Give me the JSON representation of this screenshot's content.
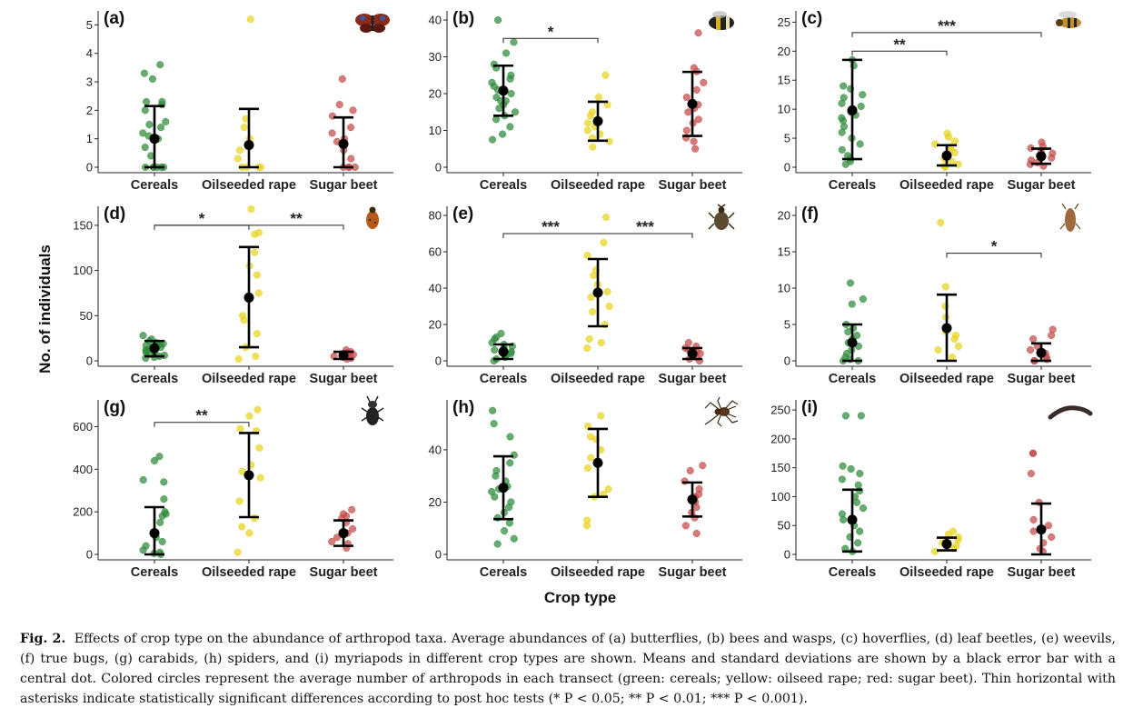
{
  "figure": {
    "y_label": "No. of individuals",
    "x_label": "Crop type"
  },
  "caption": {
    "label": "Fig. 2.",
    "text": "Effects of crop type on the abundance of arthropod taxa. Average abundances of (a) butterflies, (b) bees and wasps, (c) hoverflies, (d) leaf beetles, (e) weevils, (f) true bugs, (g) carabids, (h) spiders, and (i) myriapods in different crop types are shown. Means and standard deviations are shown by a black error bar with a central dot. Colored circles represent the average number of arthropods in each transect (green: cereals; yellow: oilseed rape; red: sugar beet). Thin horizontal with asterisks indicate statistically significant differences according to post hoc tests (* P < 0.05; ** P < 0.01; *** P < 0.001)."
  },
  "colors": {
    "cereals": "#2e8b3a",
    "oilseed_rape": "#e8d21e",
    "sugar_beet": "#c44a4a",
    "mean": "#000000"
  },
  "chart_data": [
    {
      "type": "scatter",
      "panel": "(a)",
      "icon": "butterfly-icon",
      "categories": [
        "Cereals",
        "Oilseeded rape",
        "Sugar beet"
      ],
      "ylim": [
        0,
        5.3
      ],
      "yticks": [
        0,
        1,
        2,
        3,
        4,
        5
      ],
      "summary": [
        {
          "mean": 1.0,
          "low": 0.0,
          "high": 2.15
        },
        {
          "mean": 0.78,
          "low": 0.0,
          "high": 2.05
        },
        {
          "mean": 0.82,
          "low": 0.0,
          "high": 1.75
        }
      ],
      "points": [
        [
          3.6,
          3.3,
          3.1,
          2.3,
          2.3,
          2.2,
          2.0,
          1.6,
          1.5,
          1.4,
          1.2,
          1.1,
          1.0,
          1.0,
          0.7,
          0.4,
          0.0,
          0.0,
          0.0,
          0.0,
          0.0,
          0.0
        ],
        [
          5.2,
          1.7,
          1.4,
          1.0,
          0.6,
          0.3,
          0.0,
          0.0,
          0.0,
          0.0
        ],
        [
          3.1,
          2.2,
          2.0,
          1.8,
          1.4,
          1.2,
          1.0,
          0.9,
          0.6,
          0.3,
          0.0,
          0.0,
          0.0,
          0.0
        ]
      ],
      "significance": []
    },
    {
      "type": "scatter",
      "panel": "(b)",
      "icon": "bumblebee-icon",
      "categories": [
        "Cereals",
        "Oilseeded rape",
        "Sugar beet"
      ],
      "ylim": [
        0,
        41
      ],
      "yticks": [
        0,
        10,
        20,
        30,
        40
      ],
      "summary": [
        {
          "mean": 20.8,
          "low": 14.0,
          "high": 27.6
        },
        {
          "mean": 12.5,
          "low": 7.2,
          "high": 17.8
        },
        {
          "mean": 17.2,
          "low": 8.5,
          "high": 25.9
        }
      ],
      "points": [
        [
          40,
          34,
          31,
          28,
          27,
          25,
          24,
          23,
          22,
          21,
          20,
          19,
          18,
          18,
          17,
          16,
          15,
          14,
          13,
          11,
          9,
          7.5
        ],
        [
          25,
          19,
          17,
          15,
          14,
          12,
          11,
          10,
          9,
          8,
          7,
          5.5
        ],
        [
          36.5,
          27,
          26,
          23,
          21,
          19,
          17,
          16,
          15,
          13,
          12,
          10,
          8,
          7,
          5
        ]
      ],
      "significance": [
        {
          "from": 0,
          "to": 1,
          "label": "*",
          "y": 35
        }
      ]
    },
    {
      "type": "scatter",
      "panel": "(c)",
      "icon": "hoverfly-icon",
      "categories": [
        "Cereals",
        "Oilseeded rape",
        "Sugar beet"
      ],
      "ylim": [
        0,
        26
      ],
      "yticks": [
        0,
        5,
        10,
        15,
        20,
        25
      ],
      "summary": [
        {
          "mean": 9.8,
          "low": 1.4,
          "high": 18.5
        },
        {
          "mean": 2.0,
          "low": 0.3,
          "high": 3.8
        },
        {
          "mean": 1.9,
          "low": 0.6,
          "high": 3.2
        }
      ],
      "points": [
        [
          18.5,
          17.5,
          14,
          13.5,
          12.5,
          12,
          11,
          10.5,
          10,
          9.5,
          9,
          8.5,
          8,
          7,
          6,
          5,
          4,
          3,
          2,
          1.5,
          1,
          0.5
        ],
        [
          5.8,
          5.2,
          4.5,
          4.0,
          3.5,
          3.0,
          2.5,
          2.0,
          1.5,
          1.0,
          0.5,
          0.2,
          0.0
        ],
        [
          4.3,
          3.6,
          3.3,
          2.8,
          2.4,
          2.0,
          1.6,
          1.2,
          0.8,
          0.5,
          0.2
        ]
      ],
      "significance": [
        {
          "from": 0,
          "to": 1,
          "label": "**",
          "y": 20
        },
        {
          "from": 0,
          "to": 2,
          "label": "***",
          "y": 23.2
        }
      ]
    },
    {
      "type": "scatter",
      "panel": "(d)",
      "icon": "leaf-beetle-icon",
      "categories": [
        "Cereals",
        "Oilseeded rape",
        "Sugar beet"
      ],
      "ylim": [
        0,
        165
      ],
      "yticks": [
        0,
        50,
        100,
        150
      ],
      "summary": [
        {
          "mean": 14,
          "low": 5,
          "high": 22
        },
        {
          "mean": 70,
          "low": 15,
          "high": 126
        },
        {
          "mean": 6,
          "low": 2,
          "high": 10
        }
      ],
      "points": [
        [
          28,
          24,
          22,
          20,
          19,
          18,
          17,
          16,
          15,
          14,
          13,
          12,
          11,
          10,
          9,
          8,
          6,
          5,
          4,
          3
        ],
        [
          168,
          142,
          140,
          120,
          105,
          95,
          75,
          50,
          45,
          30,
          15,
          5,
          2
        ],
        [
          12,
          10,
          9,
          8,
          7,
          6,
          5,
          4,
          3,
          2
        ]
      ],
      "significance": [
        {
          "from": 0,
          "to": 1,
          "label": "*",
          "y": 150,
          "label_at": 0.5
        },
        {
          "from": 1,
          "to": 2,
          "label": "**",
          "y": 150,
          "draw_line": false
        }
      ],
      "significance_line": {
        "from": 0,
        "to": 2,
        "y": 150
      }
    },
    {
      "type": "scatter",
      "panel": "(e)",
      "icon": "weevil-icon",
      "categories": [
        "Cereals",
        "Oilseeded rape",
        "Sugar beet"
      ],
      "ylim": [
        0,
        82
      ],
      "yticks": [
        0,
        20,
        40,
        60,
        80
      ],
      "summary": [
        {
          "mean": 5,
          "low": 1,
          "high": 9
        },
        {
          "mean": 37.5,
          "low": 19,
          "high": 56
        },
        {
          "mean": 4,
          "low": 1,
          "high": 7
        }
      ],
      "points": [
        [
          15,
          13,
          12,
          10,
          9,
          8,
          7,
          6,
          5,
          4,
          3,
          2,
          1,
          0
        ],
        [
          79,
          65,
          58,
          50,
          47,
          42,
          38,
          35,
          30,
          27,
          20,
          12,
          10,
          7
        ],
        [
          10,
          8,
          7,
          6,
          5,
          4,
          3,
          2,
          1,
          0
        ]
      ],
      "significance_line": {
        "from": 0,
        "to": 2,
        "y": 70
      },
      "significance": [
        {
          "from": 0,
          "to": 1,
          "label": "***",
          "y": 70,
          "draw_line": false
        },
        {
          "from": 1,
          "to": 2,
          "label": "***",
          "y": 70,
          "draw_line": false
        }
      ]
    },
    {
      "type": "scatter",
      "panel": "(f)",
      "icon": "true-bug-icon",
      "categories": [
        "Cereals",
        "Oilseeded rape",
        "Sugar beet"
      ],
      "ylim": [
        0,
        20.5
      ],
      "yticks": [
        0,
        5,
        10,
        15,
        20
      ],
      "summary": [
        {
          "mean": 2.5,
          "low": 0,
          "high": 5
        },
        {
          "mean": 4.5,
          "low": 0,
          "high": 9.1
        },
        {
          "mean": 1.1,
          "low": 0,
          "high": 2.4
        }
      ],
      "points": [
        [
          10.7,
          8.5,
          7.8,
          5,
          4.5,
          4,
          3.5,
          3,
          2.5,
          2,
          1.5,
          1,
          0.5,
          0.2,
          0,
          0
        ],
        [
          19,
          10.2,
          7.5,
          6,
          4,
          3.5,
          3,
          2,
          1.5,
          0.5
        ],
        [
          4.3,
          3.5,
          3,
          2,
          1.5,
          1,
          0.5,
          0.2,
          0,
          0
        ]
      ],
      "significance": [
        {
          "from": 1,
          "to": 2,
          "label": "*",
          "y": 14.8
        }
      ]
    },
    {
      "type": "scatter",
      "panel": "(g)",
      "icon": "carabid-beetle-icon",
      "categories": [
        "Cereals",
        "Oilseeded rape",
        "Sugar beet"
      ],
      "ylim": [
        0,
        700
      ],
      "yticks": [
        0,
        200,
        400,
        600
      ],
      "summary": [
        {
          "mean": 100,
          "low": 0,
          "high": 222
        },
        {
          "mean": 372,
          "low": 175,
          "high": 570
        },
        {
          "mean": 100,
          "low": 40,
          "high": 160
        }
      ],
      "points": [
        [
          460,
          440,
          350,
          340,
          260,
          200,
          190,
          180,
          150,
          100,
          80,
          60,
          40,
          20,
          10,
          5,
          0
        ],
        [
          680,
          650,
          590,
          580,
          500,
          420,
          390,
          360,
          250,
          170,
          130,
          100,
          10
        ],
        [
          210,
          190,
          180,
          170,
          150,
          120,
          100,
          80,
          60,
          50,
          30
        ]
      ],
      "significance": [
        {
          "from": 0,
          "to": 1,
          "label": "**",
          "y": 620
        }
      ]
    },
    {
      "type": "scatter",
      "panel": "(h)",
      "icon": "spider-icon",
      "categories": [
        "Cereals",
        "Oilseeded rape",
        "Sugar beet"
      ],
      "ylim": [
        0,
        57
      ],
      "yticks": [
        0,
        20,
        40
      ],
      "summary": [
        {
          "mean": 25.5,
          "low": 13.5,
          "high": 37.5
        },
        {
          "mean": 35,
          "low": 22,
          "high": 48
        },
        {
          "mean": 21,
          "low": 14.5,
          "high": 27.5
        }
      ],
      "points": [
        [
          55,
          50,
          45,
          38,
          35,
          32,
          30,
          28,
          26,
          25,
          24,
          22,
          20,
          18,
          16,
          14,
          12,
          9,
          6,
          4
        ],
        [
          53,
          49,
          45,
          44,
          40,
          37,
          33,
          25,
          23,
          22,
          13,
          11
        ],
        [
          34,
          32,
          28,
          25,
          23,
          22,
          20,
          18,
          16,
          14,
          11,
          8
        ]
      ],
      "significance": []
    },
    {
      "type": "scatter",
      "panel": "(i)",
      "icon": "myriapod-icon",
      "categories": [
        "Cereals",
        "Oilseeded rape",
        "Sugar beet"
      ],
      "ylim": [
        0,
        258
      ],
      "yticks": [
        0,
        50,
        100,
        150,
        200,
        250
      ],
      "summary": [
        {
          "mean": 60,
          "low": 5,
          "high": 112
        },
        {
          "mean": 18,
          "low": 7,
          "high": 29
        },
        {
          "mean": 43,
          "low": 0,
          "high": 88
        }
      ],
      "points": [
        [
          240,
          240,
          153,
          148,
          140,
          130,
          120,
          110,
          100,
          90,
          80,
          70,
          60,
          50,
          40,
          30,
          20,
          10,
          5
        ],
        [
          40,
          35,
          30,
          25,
          20,
          15,
          10,
          5
        ],
        [
          175,
          175,
          140,
          90,
          60,
          50,
          40,
          30,
          20,
          10,
          5
        ]
      ],
      "significance": []
    }
  ]
}
